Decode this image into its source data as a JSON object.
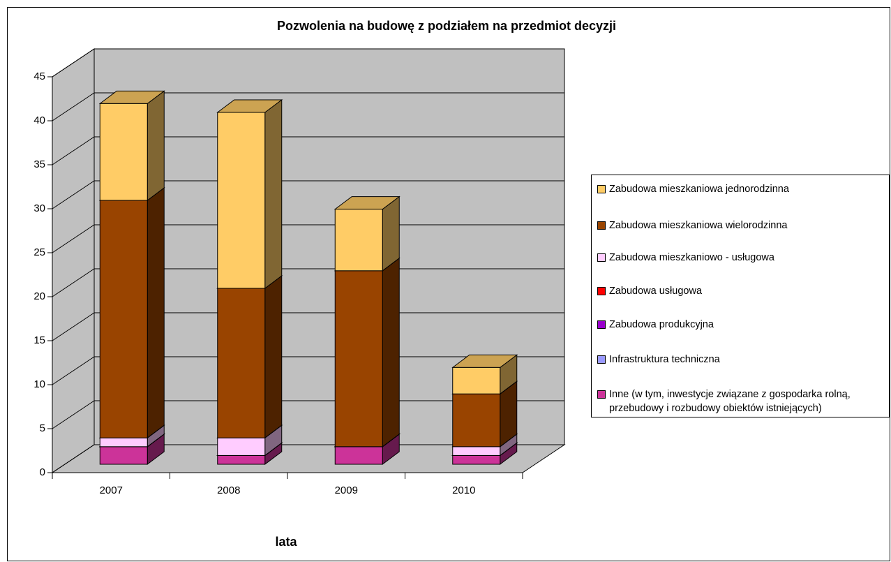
{
  "chart_data": {
    "type": "bar3d_stacked",
    "title": "Pozwolenia na budowę z podziałem na przedmiot decyzji",
    "x_label": "lata",
    "categories": [
      "2007",
      "2008",
      "2009",
      "2010"
    ],
    "ylim": [
      0,
      45
    ],
    "yticks": [
      0,
      5,
      10,
      15,
      20,
      25,
      30,
      35,
      40,
      45
    ],
    "grid": true,
    "series": [
      {
        "name": "Zabudowa mieszkaniowa jednorodzinna",
        "color": "#ffcc66",
        "values": [
          11,
          20,
          7,
          3
        ]
      },
      {
        "name": "Zabudowa mieszkaniowa wielorodzinna",
        "color": "#994400",
        "values": [
          27,
          17,
          20,
          6
        ]
      },
      {
        "name": "Zabudowa mieszkaniowo - usługowa",
        "color": "#ffccff",
        "values": [
          1,
          2,
          0,
          1
        ]
      },
      {
        "name": "Zabudowa usługowa",
        "color": "#ff0000",
        "values": [
          0,
          0,
          0,
          0
        ]
      },
      {
        "name": "Zabudowa produkcyjna",
        "color": "#9900cc",
        "values": [
          0,
          0,
          0,
          0
        ]
      },
      {
        "name": "Infrastruktura techniczna",
        "color": "#9999ff",
        "values": [
          0,
          0,
          0,
          0
        ]
      },
      {
        "name": "Inne (w tym, inwestycje związane z gospodarka rolną, przebudowy i rozbudowy obiektów istniejących)",
        "color": "#cc3399",
        "values": [
          2,
          1,
          2,
          1
        ]
      }
    ]
  }
}
